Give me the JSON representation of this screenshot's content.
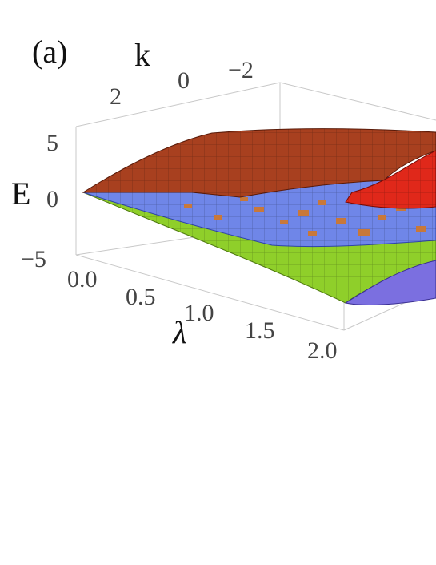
{
  "panel_label": "(a)",
  "chart_data": {
    "type": "surface3d",
    "axes": {
      "lambda": {
        "label": "λ",
        "ticks": [
          "0.0",
          "0.5",
          "1.0",
          "1.5",
          "2.0"
        ],
        "range": [
          0,
          2
        ]
      },
      "k": {
        "label": "k",
        "ticks": [
          "2",
          "0",
          "−2"
        ],
        "range": [
          3,
          -3
        ]
      },
      "E": {
        "label": "E",
        "ticks": [
          "5",
          "0",
          "−5"
        ],
        "range": [
          -5,
          5
        ]
      }
    },
    "surfaces": [
      {
        "color": "#a8401f",
        "edge_color": "#e0401f",
        "description_values": {
          "E_at_lambda_0": 0,
          "E_max": 5.5
        }
      },
      {
        "color": "#6f86e8",
        "patch_color": "#c8783a",
        "description_values": {
          "E_at_lambda_0": 0,
          "E_at_lambda_2": -1.5
        }
      },
      {
        "color": "#8fcf2a",
        "underside_color": "#7b6fe0",
        "description_values": {
          "E_at_lambda_0": 0,
          "E_min": -5.5
        }
      }
    ],
    "grid": false,
    "box": true
  }
}
